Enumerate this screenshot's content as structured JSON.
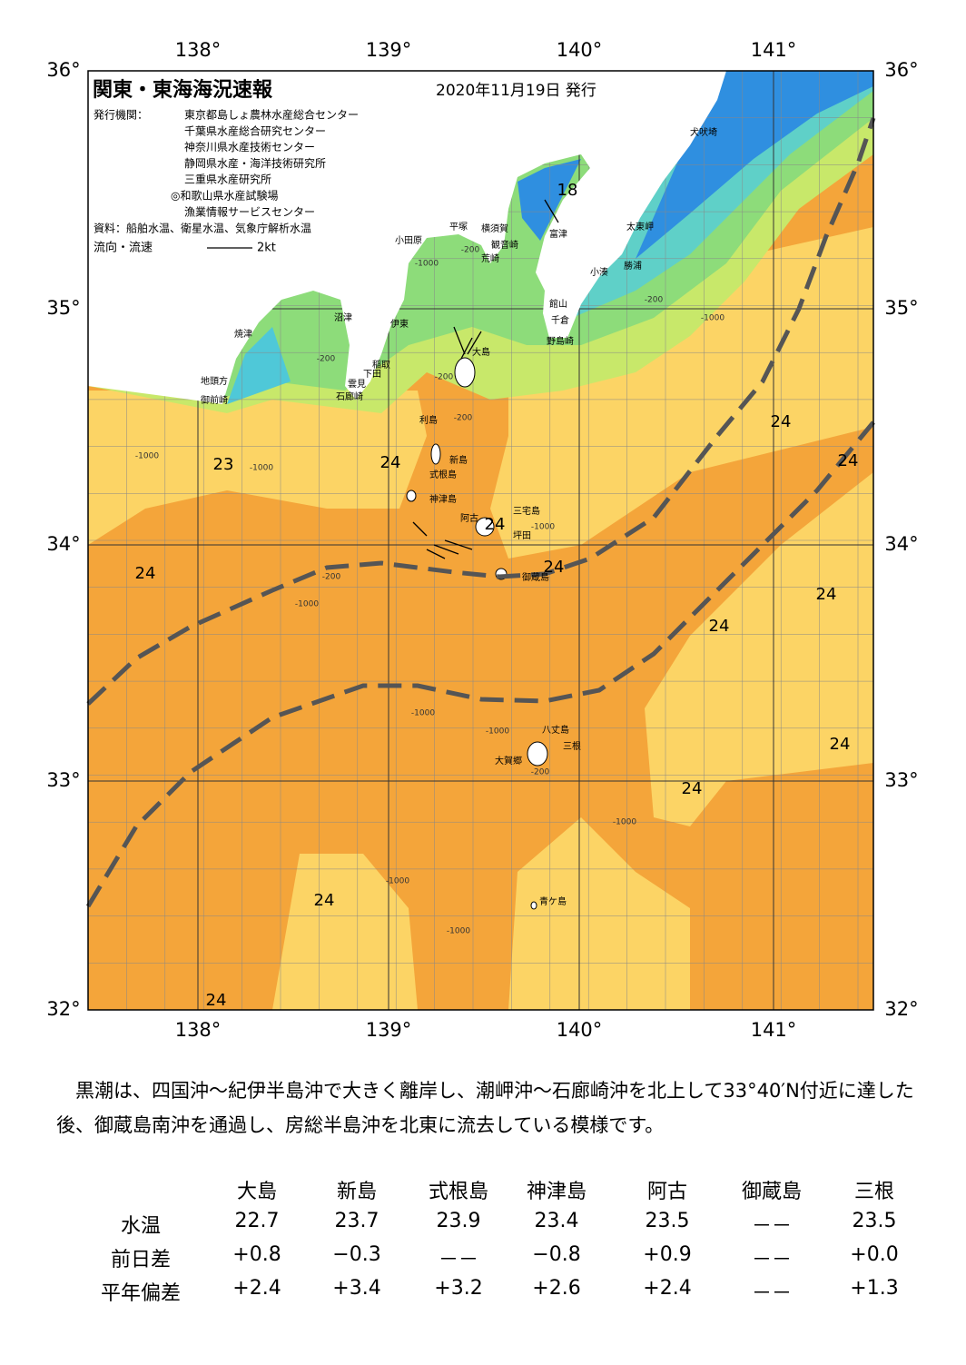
{
  "header": {
    "title": "関東・東海海況速報",
    "date": "2020年11月19日 発行",
    "issuer_label": "発行機関：",
    "issuers": [
      "東京都島しょ農林水産総合センター",
      "千葉県水産総合研究センター",
      "神奈川県水産技術センター",
      "静岡県水産・海洋技術研究所",
      "三重県水産研究所",
      "◎和歌山県水産試験場",
      "漁業情報サービスセンター"
    ],
    "source": "資料：船舶水温、衛星水温、気象庁解析水温",
    "legend_label": "流向・流速",
    "legend_scale": "2kt"
  },
  "map": {
    "lon_labels": [
      "138°",
      "139°",
      "140°",
      "141°"
    ],
    "lat_labels": [
      "36°",
      "35°",
      "34°",
      "33°",
      "32°"
    ],
    "place_names": [
      "犬吠埼",
      "太東岬",
      "勝浦",
      "小湊",
      "富津",
      "観音崎",
      "荒崎",
      "横須賀",
      "平塚",
      "小田原",
      "館山",
      "千倉",
      "野島崎",
      "沼津",
      "伊東",
      "焼津",
      "大島",
      "稲取",
      "下田",
      "雲見",
      "石廊崎",
      "地頭方",
      "御前崎",
      "利島",
      "新島",
      "式根島",
      "神津島",
      "三宅島",
      "阿古",
      "坪田",
      "御蔵島",
      "八丈島",
      "三根",
      "大賀郷",
      "青ケ島"
    ],
    "temperature_labels": [
      "18",
      "24",
      "24",
      "23",
      "24",
      "24",
      "24",
      "24",
      "24",
      "24",
      "24",
      "24",
      "24",
      "24"
    ],
    "depth_labels": [
      "-1000",
      "-200",
      "-200",
      "-1000",
      "-1000",
      "-200",
      "-200",
      "-1000",
      "-200",
      "-1000",
      "-1000",
      "-1000",
      "-200",
      "-1000",
      "-1000",
      "-1000",
      "-200",
      "-1000"
    ]
  },
  "description": "黒潮は、四国沖～紀伊半島沖で大きく離岸し、潮岬沖～石廊崎沖を北上して33°40′N付近に達した後、御蔵島南沖を通過し、房総半島沖を北東に流去している模様です。",
  "table": {
    "columns": [
      "大島",
      "新島",
      "式根島",
      "神津島",
      "阿古",
      "御蔵島",
      "三根"
    ],
    "rows": [
      {
        "label": "水温",
        "values": [
          "22.7",
          "23.7",
          "23.9",
          "23.4",
          "23.5",
          "－－",
          "23.5"
        ]
      },
      {
        "label": "前日差",
        "values": [
          "+0.8",
          "−0.3",
          "－－",
          "−0.8",
          "+0.9",
          "－－",
          "+0.0"
        ]
      },
      {
        "label": "平年偏差",
        "values": [
          "+2.4",
          "+3.4",
          "+3.2",
          "+2.6",
          "+2.4",
          "－－",
          "+1.3"
        ]
      }
    ]
  }
}
